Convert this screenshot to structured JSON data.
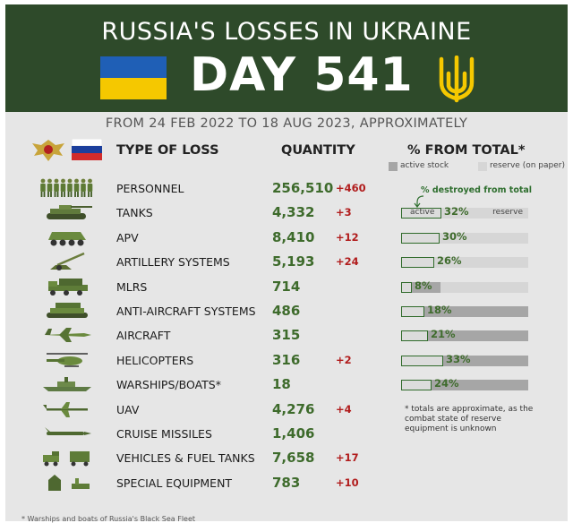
{
  "header": {
    "title": "RUSSIA'S LOSSES IN UKRAINE",
    "day": "DAY 541",
    "subtitle": "FROM 24 FEB 2022 TO 18 AUG 2023, APPROXIMATELY"
  },
  "columns": {
    "type": "TYPE OF LOSS",
    "quantity": "QUANTITY",
    "percent": "% FROM TOTAL*"
  },
  "legend": {
    "active": "active stock",
    "reserve": "reserve (on paper)",
    "destroyed": "% destroyed from total"
  },
  "bar_labels": {
    "active": "active",
    "reserve": "reserve"
  },
  "colors": {
    "header_bg": "#2e4a2a",
    "qty": "#3e6b2c",
    "increase": "#b11c1c",
    "flag_blue": "#1f5fb6",
    "flag_yellow": "#f5c800"
  },
  "rows": [
    {
      "name": "PERSONNEL",
      "qty": "256,510",
      "inc": "+460",
      "icon": "soldiers-icon"
    },
    {
      "name": "TANKS",
      "qty": "4,332",
      "inc": "+3",
      "icon": "tank-icon",
      "pct": "32%",
      "pct_v": 32,
      "active_v": 0.26
    },
    {
      "name": "APV",
      "qty": "8,410",
      "inc": "+12",
      "icon": "apv-icon",
      "pct": "30%",
      "pct_v": 30,
      "active_v": 0.3
    },
    {
      "name": "ARTILLERY SYSTEMS",
      "qty": "5,193",
      "inc": "+24",
      "icon": "artillery-icon",
      "pct": "26%",
      "pct_v": 26,
      "active_v": 0.17
    },
    {
      "name": "MLRS",
      "qty": "714",
      "inc": "",
      "icon": "mlrs-icon",
      "pct": "8%",
      "pct_v": 8,
      "active_v": 0.31
    },
    {
      "name": "ANTI-AIRCRAFT SYSTEMS",
      "qty": "486",
      "inc": "",
      "icon": "anti-aircraft-icon",
      "pct": "18%",
      "pct_v": 18,
      "active_v": 1.0
    },
    {
      "name": "AIRCRAFT",
      "qty": "315",
      "inc": "",
      "icon": "aircraft-icon",
      "pct": "21%",
      "pct_v": 21,
      "active_v": 1.0
    },
    {
      "name": "HELICOPTERS",
      "qty": "316",
      "inc": "+2",
      "icon": "helicopter-icon",
      "pct": "33%",
      "pct_v": 33,
      "active_v": 1.0
    },
    {
      "name": "WARSHIPS/BOATS*",
      "qty": "18",
      "inc": "",
      "icon": "warship-icon",
      "pct": "24%",
      "pct_v": 24,
      "active_v": 1.0
    },
    {
      "name": "UAV",
      "qty": "4,276",
      "inc": "+4",
      "icon": "uav-icon"
    },
    {
      "name": "CRUISE MISSILES",
      "qty": "1,406",
      "inc": "",
      "icon": "cruise-missile-icon"
    },
    {
      "name": "VEHICLES & FUEL TANKS",
      "qty": "7,658",
      "inc": "+17",
      "icon": "vehicles-icon"
    },
    {
      "name": "SPECIAL EQUIPMENT",
      "qty": "783",
      "inc": "+10",
      "icon": "special-equipment-icon"
    }
  ],
  "note": "* totals are approximate, as the combat state of reserve equipment is unknown",
  "footnote": "* Warships and boats of Russia's Black Sea Fleet"
}
